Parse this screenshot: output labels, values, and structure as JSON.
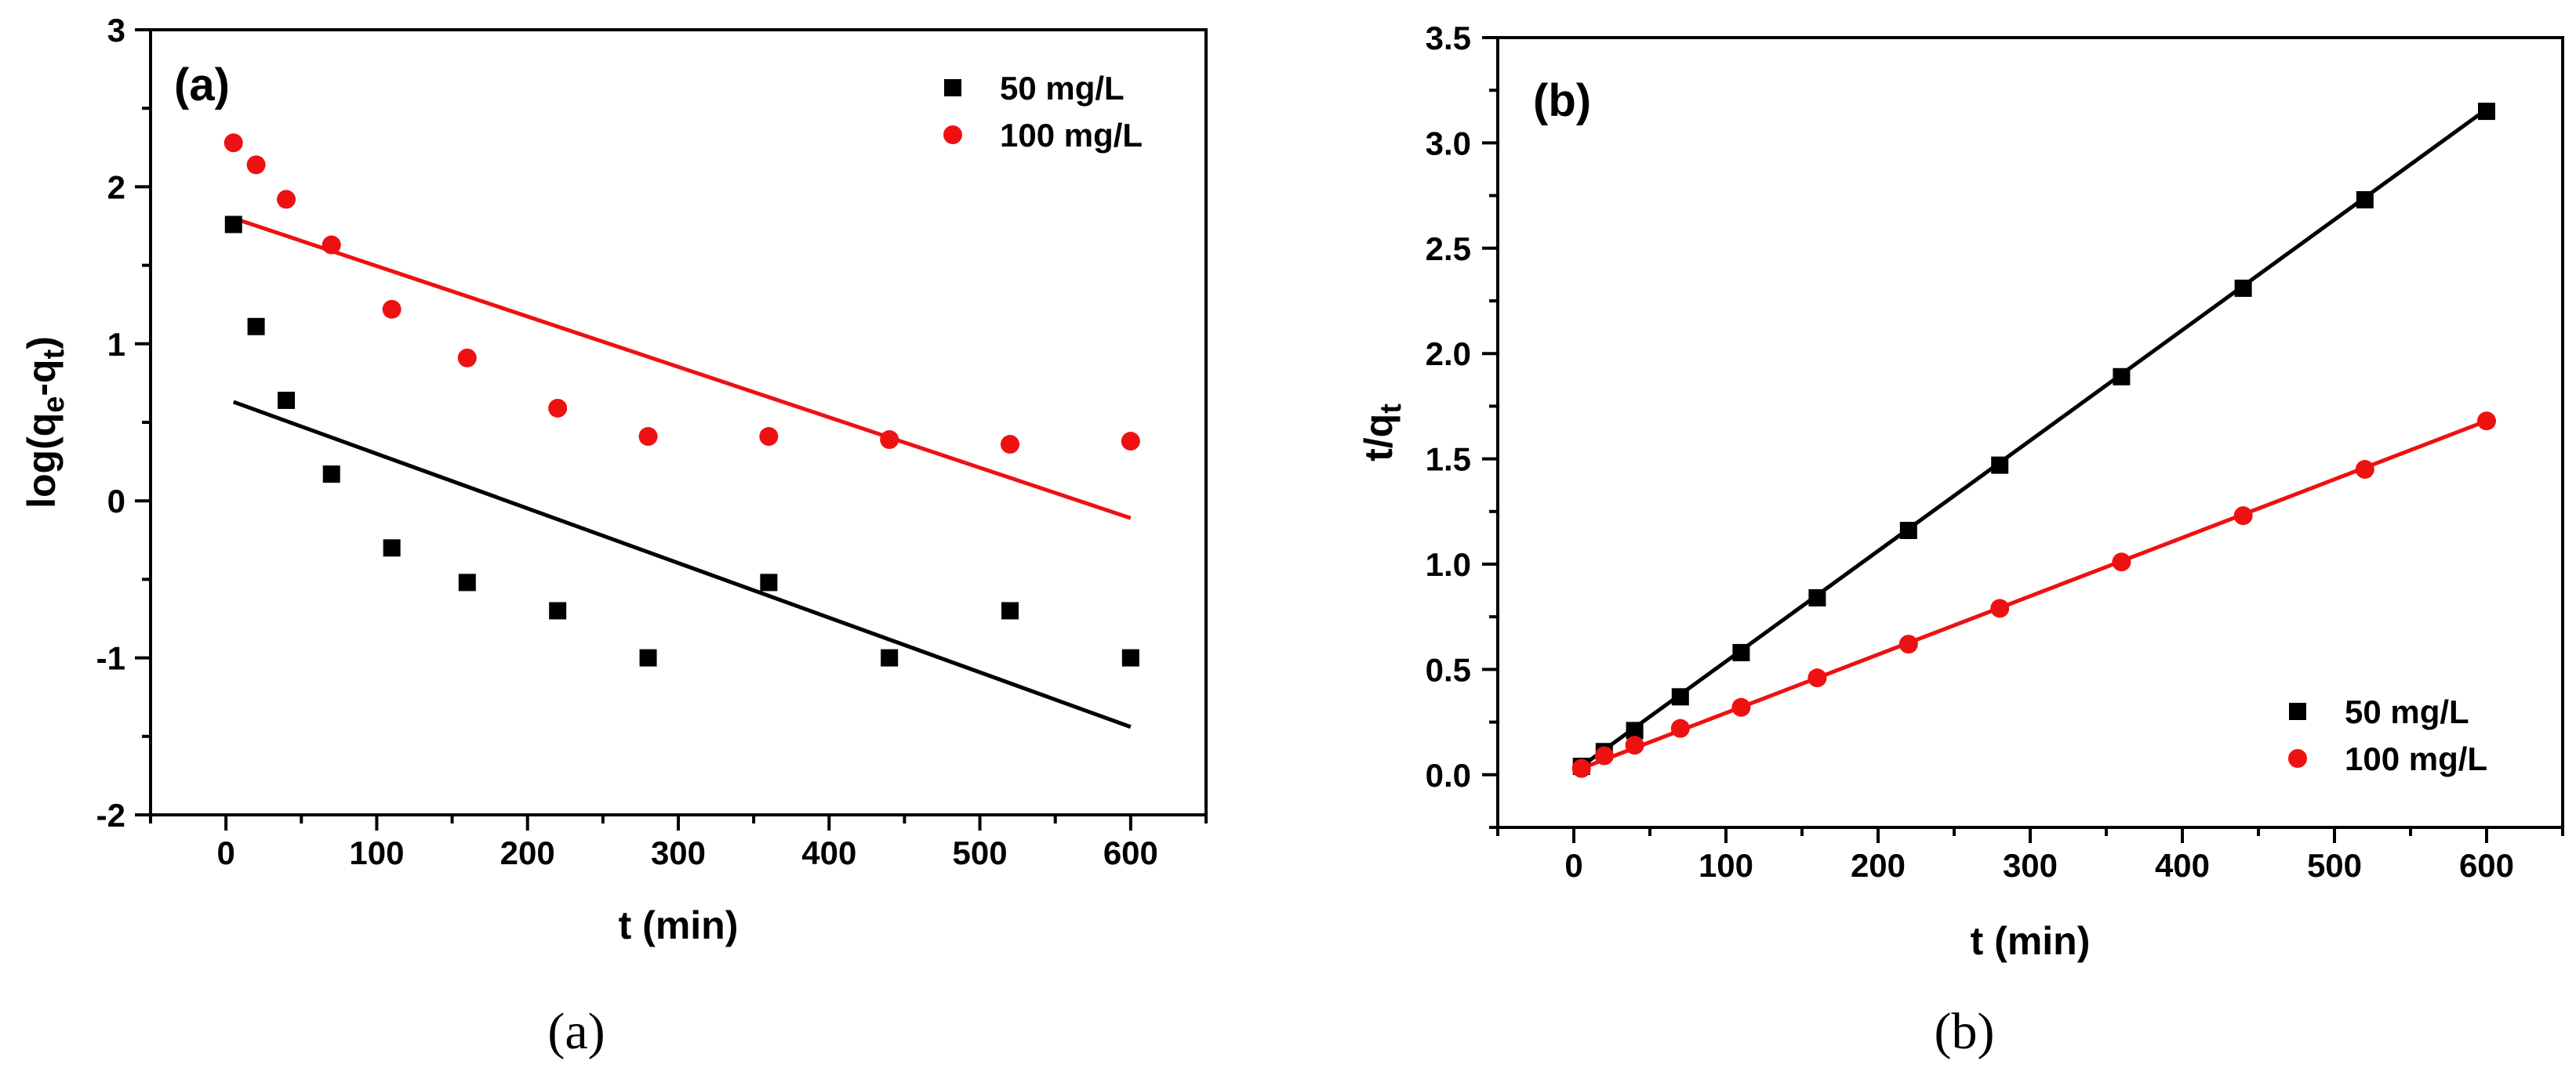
{
  "figure": {
    "captions": [
      "(a)",
      "(b)"
    ]
  },
  "chart_data": [
    {
      "type": "scatter",
      "panel_label": "(a)",
      "title": "",
      "xlabel": "t (min)",
      "ylabel": "log(q_e-q_t)",
      "ylabel_parts": {
        "main": "log(q",
        "sub1": "e",
        "mid": "-q",
        "sub2": "t",
        "end": ")"
      },
      "xlim": [
        -50,
        650
      ],
      "ylim": [
        -2,
        3
      ],
      "xticks": [
        0,
        100,
        200,
        300,
        400,
        500,
        600
      ],
      "yticks": [
        -2,
        -1,
        0,
        1,
        2,
        3
      ],
      "legend_position": "top-right",
      "series": [
        {
          "name": "50 mg/L",
          "color": "#000000",
          "marker": "square",
          "x": [
            5,
            20,
            40,
            70,
            110,
            160,
            220,
            280,
            360,
            440,
            520,
            600
          ],
          "y": [
            1.76,
            1.11,
            0.64,
            0.17,
            -0.3,
            -0.52,
            -0.7,
            -1.0,
            -0.52,
            -1.0,
            -0.7,
            -1.0
          ],
          "fit": {
            "x": [
              5,
              600
            ],
            "y": [
              0.63,
              -1.44
            ]
          }
        },
        {
          "name": "100 mg/L",
          "color": "#ee1111",
          "marker": "circle",
          "x": [
            5,
            20,
            40,
            70,
            110,
            160,
            220,
            280,
            360,
            440,
            520,
            600
          ],
          "y": [
            2.28,
            2.14,
            1.92,
            1.63,
            1.22,
            0.91,
            0.59,
            0.41,
            0.41,
            0.39,
            0.36,
            0.38
          ],
          "fit": {
            "x": [
              5,
              600
            ],
            "y": [
              1.8,
              -0.11
            ]
          }
        }
      ]
    },
    {
      "type": "line",
      "panel_label": "(b)",
      "title": "",
      "xlabel": "t (min)",
      "ylabel": "t/q_t",
      "ylabel_parts": {
        "main": "t/q",
        "sub1": "t"
      },
      "xlim": [
        -50,
        650
      ],
      "ylim": [
        -0.25,
        3.5
      ],
      "xticks": [
        0,
        100,
        200,
        300,
        400,
        500,
        600
      ],
      "yticks": [
        0.0,
        0.5,
        1.0,
        1.5,
        2.0,
        2.5,
        3.0,
        3.5
      ],
      "ytick_labels": [
        "0.0",
        "0.5",
        "1.0",
        "1.5",
        "2.0",
        "2.5",
        "3.0",
        "3.5"
      ],
      "legend_position": "bottom-right",
      "series": [
        {
          "name": "50 mg/L",
          "color": "#000000",
          "marker": "square",
          "x": [
            5,
            20,
            40,
            70,
            110,
            160,
            220,
            280,
            360,
            440,
            520,
            600
          ],
          "y": [
            0.04,
            0.11,
            0.21,
            0.37,
            0.58,
            0.84,
            1.16,
            1.47,
            1.89,
            2.31,
            2.73,
            3.15
          ],
          "fit": {
            "x": [
              5,
              600
            ],
            "y": [
              0.04,
              3.16
            ]
          }
        },
        {
          "name": "100 mg/L",
          "color": "#ee1111",
          "marker": "circle",
          "x": [
            5,
            20,
            40,
            70,
            110,
            160,
            220,
            280,
            360,
            440,
            520,
            600
          ],
          "y": [
            0.03,
            0.09,
            0.14,
            0.22,
            0.32,
            0.46,
            0.62,
            0.79,
            1.01,
            1.23,
            1.45,
            1.68
          ],
          "fit": {
            "x": [
              5,
              600
            ],
            "y": [
              0.03,
              1.68
            ]
          }
        }
      ]
    }
  ]
}
